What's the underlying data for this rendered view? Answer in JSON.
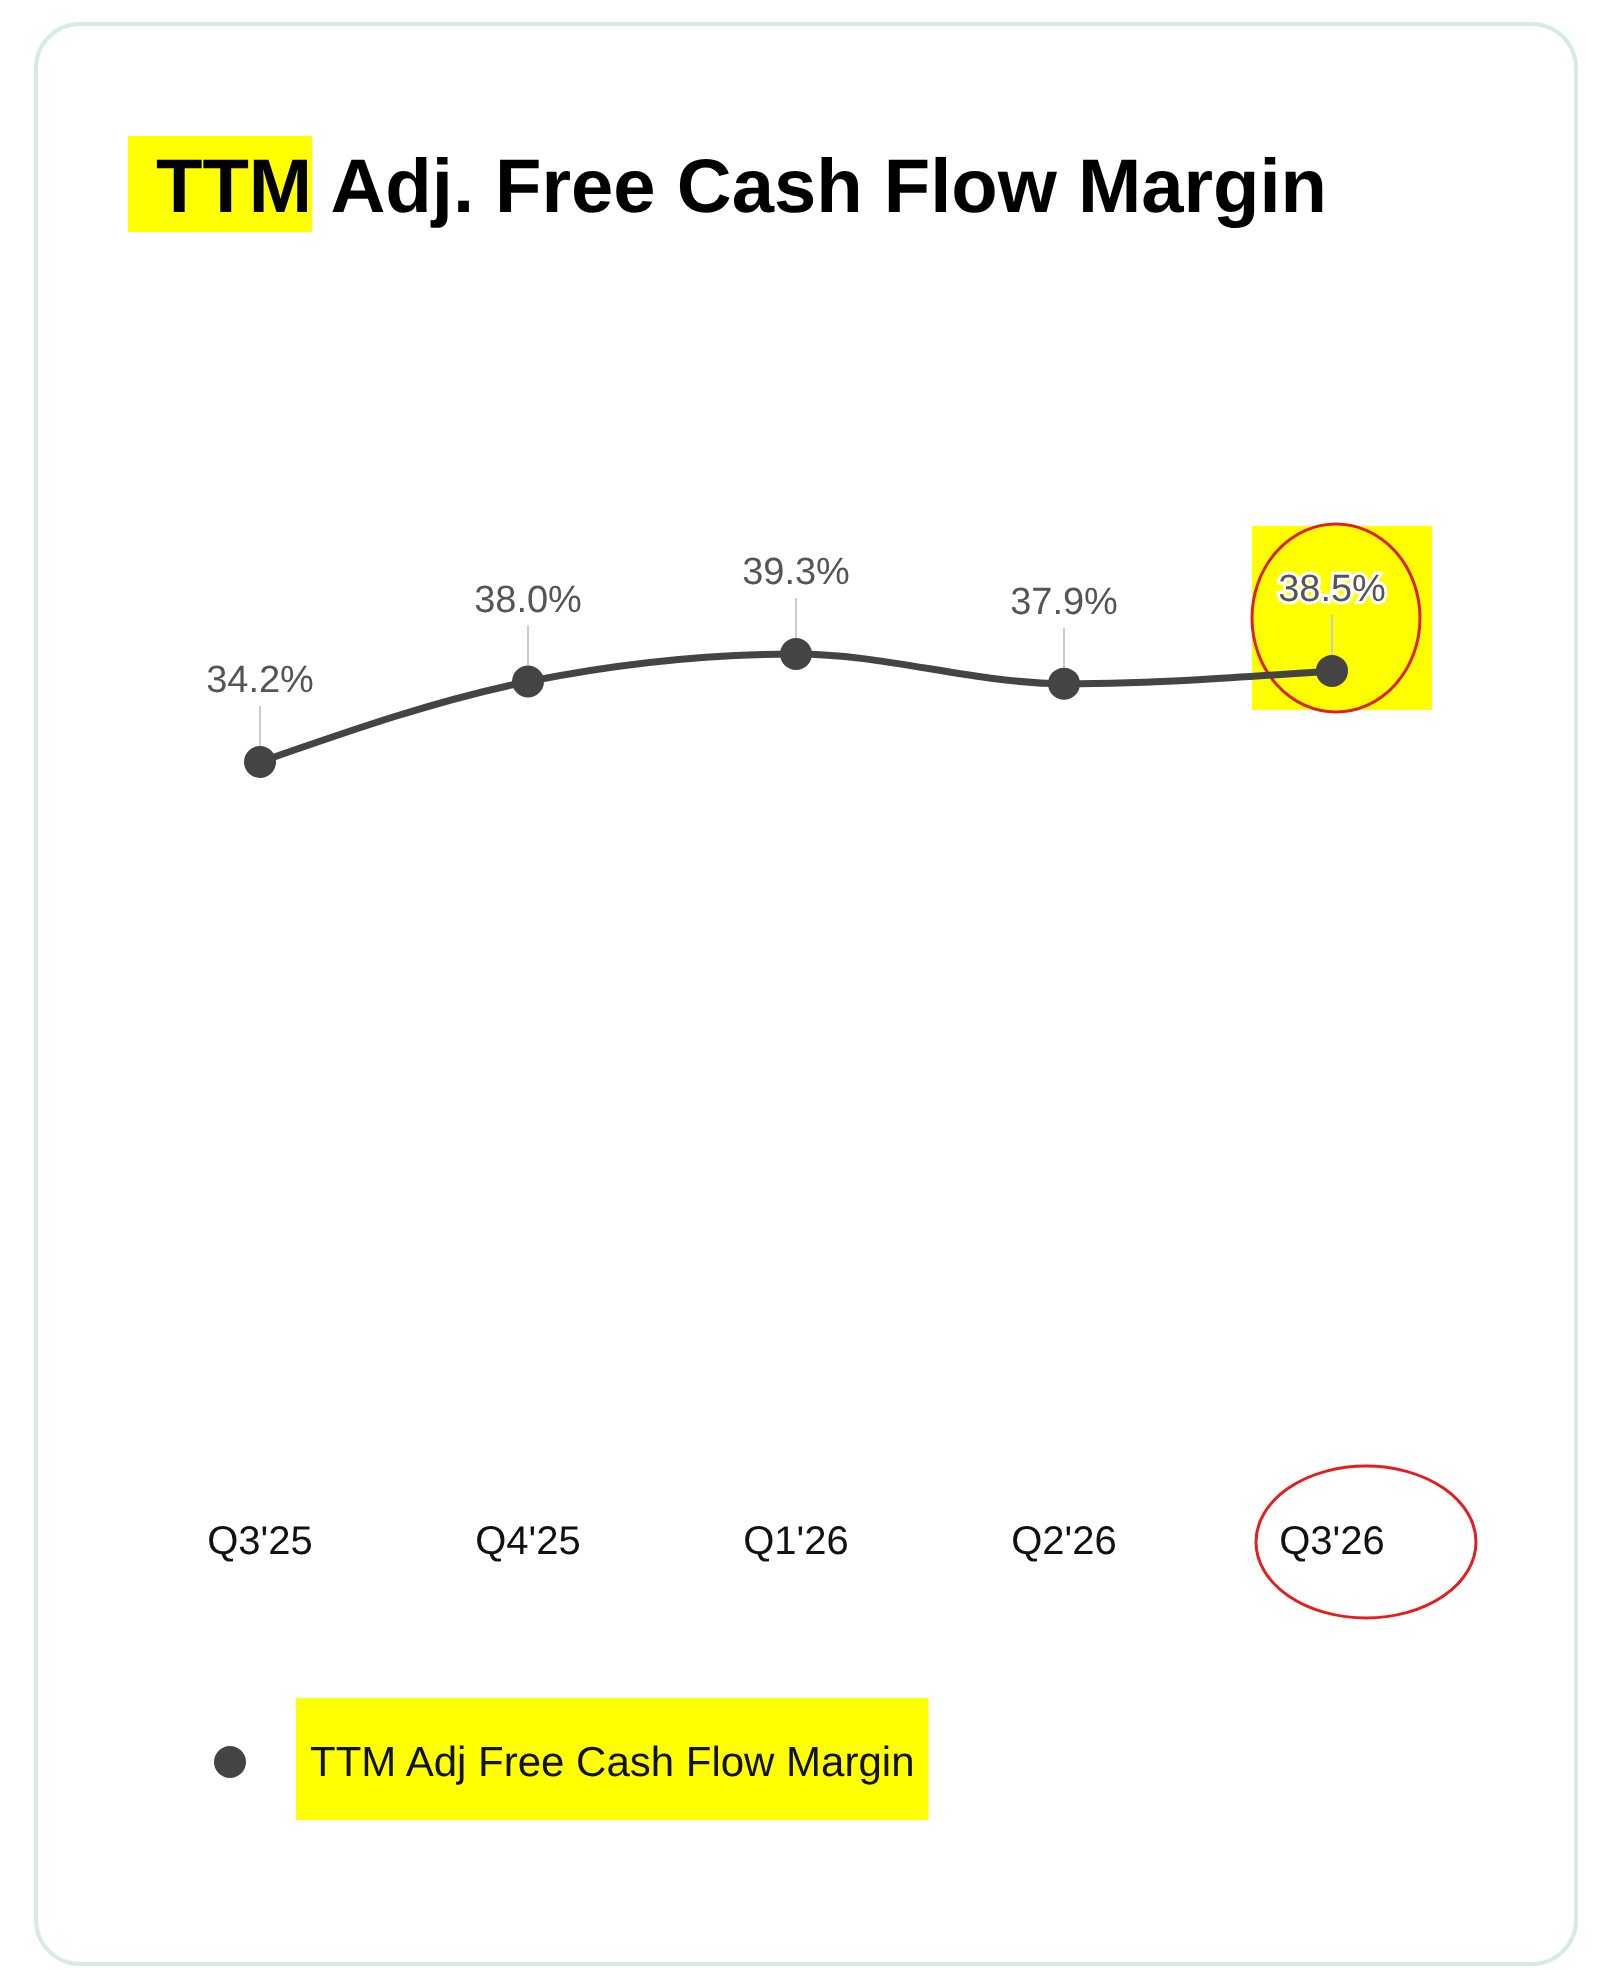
{
  "chart_data": {
    "type": "line",
    "title": "TTM Adj. Free Cash Flow Margin",
    "categories": [
      "Q3'25",
      "Q4'25",
      "Q1'26",
      "Q2'26",
      "Q3'26"
    ],
    "series": [
      {
        "name": "TTM Adj Free Cash Flow Margin",
        "color": "#444444",
        "values": [
          34.2,
          38.0,
          39.3,
          37.9,
          38.5
        ],
        "value_labels": [
          "34.2%",
          "38.0%",
          "39.3%",
          "37.9%",
          "38.5%"
        ]
      }
    ],
    "marker": "circle",
    "legend": "bottom",
    "grid": false
  }
}
